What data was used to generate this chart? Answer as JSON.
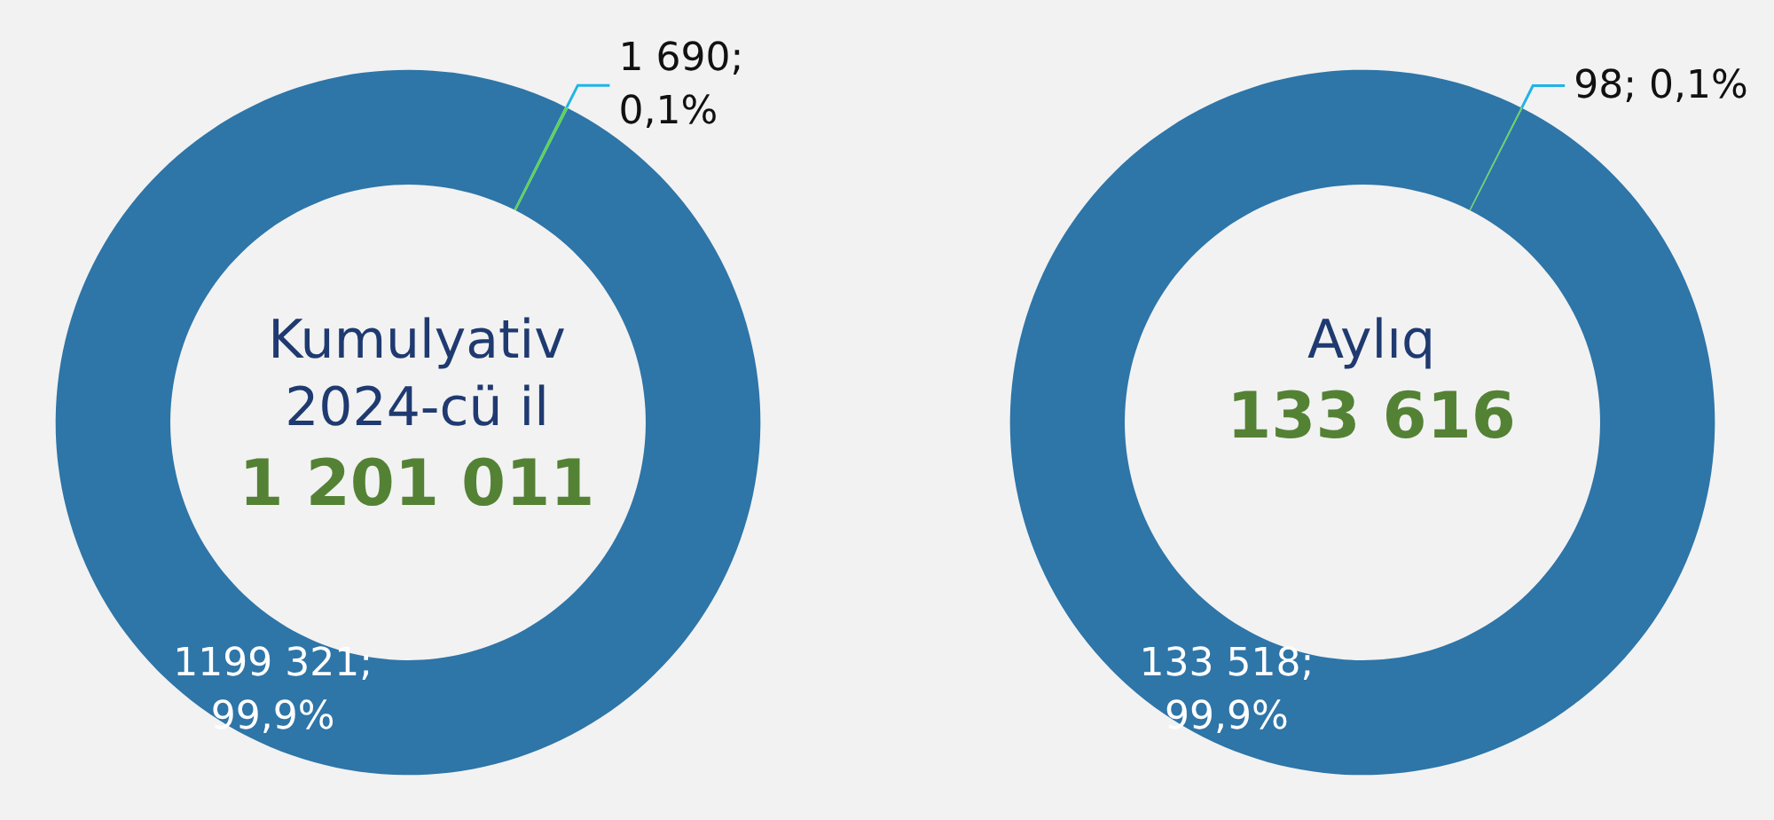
{
  "chart_data": [
    {
      "type": "donut",
      "title": "Kumulyativ\n2024-cü il",
      "subtitle": "1 201 011",
      "categories": [
        null,
        null
      ],
      "values": [
        1199321,
        1690
      ],
      "colors": [
        "#2e75a8",
        "#5ad45a"
      ],
      "value_labels": [
        "1199 321;\n99,9%",
        "1 690;\n0,1%"
      ]
    },
    {
      "type": "donut",
      "title": "Aylıq",
      "subtitle": "133 616",
      "categories": [
        null,
        null
      ],
      "values": [
        133518,
        98
      ],
      "colors": [
        "#2e75a8",
        "#5ad45a"
      ],
      "value_labels": [
        "133 518;\n99,9%",
        "98; 0,1%"
      ]
    }
  ]
}
